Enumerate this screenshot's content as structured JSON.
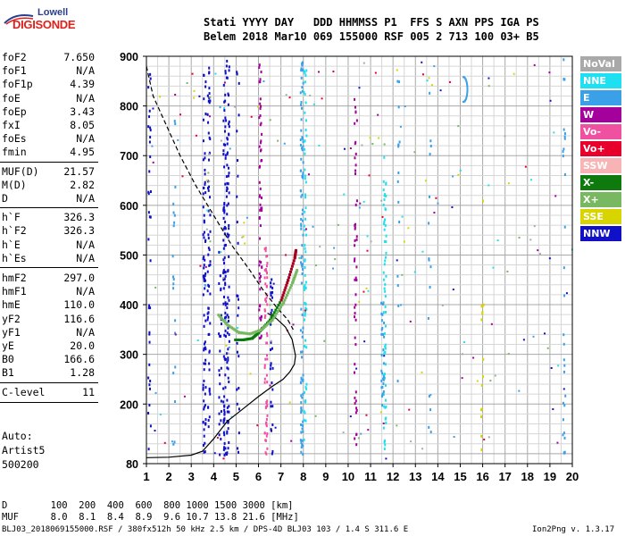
{
  "logo": {
    "top": "Lowell",
    "main": "DIGISONDE"
  },
  "header": {
    "line1": "Stati YYYY DAY   DDD HHMMSS P1  FFS S AXN PPS IGA PS",
    "line2": "Belem 2018 Mar10 069 155000 RSF 005 2 713 100 03+ B5"
  },
  "params": [
    {
      "label": "foF2",
      "value": "7.650"
    },
    {
      "label": "foF1",
      "value": "N/A"
    },
    {
      "label": "foF1p",
      "value": "4.39"
    },
    {
      "label": "foE",
      "value": "N/A"
    },
    {
      "label": "foEp",
      "value": "3.43"
    },
    {
      "label": "fxI",
      "value": "8.05"
    },
    {
      "label": "foEs",
      "value": "N/A"
    },
    {
      "label": "fmin",
      "value": "4.95"
    },
    {
      "label": "MUF(D)",
      "value": "21.57"
    },
    {
      "label": "M(D)",
      "value": "2.82"
    },
    {
      "label": "D",
      "value": "N/A"
    },
    {
      "label": "h`F",
      "value": "326.3"
    },
    {
      "label": "h`F2",
      "value": "326.3"
    },
    {
      "label": "h`E",
      "value": "N/A"
    },
    {
      "label": "h`Es",
      "value": "N/A"
    },
    {
      "label": "hmF2",
      "value": "297.0"
    },
    {
      "label": "hmF1",
      "value": "N/A"
    },
    {
      "label": "hmE",
      "value": "110.0"
    },
    {
      "label": "yF2",
      "value": "116.6"
    },
    {
      "label": "yF1",
      "value": "N/A"
    },
    {
      "label": "yE",
      "value": "20.0"
    },
    {
      "label": "B0",
      "value": "166.6"
    },
    {
      "label": "B1",
      "value": "1.28"
    },
    {
      "label": "C-level",
      "value": "11"
    }
  ],
  "auto": {
    "title": "Auto:",
    "artist": "Artist5",
    "version": "500200"
  },
  "legend": [
    {
      "label": "NoVal",
      "color": "#a9a9a9"
    },
    {
      "label": "NNE",
      "color": "#1ee0f0"
    },
    {
      "label": "E",
      "color": "#3aa0e8"
    },
    {
      "label": "W",
      "color": "#a4009c"
    },
    {
      "label": "Vo-",
      "color": "#f050a0"
    },
    {
      "label": "Vo+",
      "color": "#e8002c"
    },
    {
      "label": "SSW",
      "color": "#f8b4b4"
    },
    {
      "label": "X-",
      "color": "#0e7a0e"
    },
    {
      "label": "X+",
      "color": "#78b860"
    },
    {
      "label": "SSE",
      "color": "#d8d400"
    },
    {
      "label": "NNW",
      "color": "#1010c8"
    }
  ],
  "chart_data": {
    "type": "scatter",
    "x_ticks": [
      "1",
      "2",
      "3",
      "4",
      "5",
      "6",
      "7",
      "8",
      "9",
      "10",
      "11",
      "12",
      "13",
      "14",
      "15",
      "16",
      "17",
      "18",
      "19",
      "20"
    ],
    "y_ticks": [
      "80",
      "200",
      "300",
      "400",
      "500",
      "600",
      "700",
      "800",
      "900"
    ],
    "xlim": [
      1,
      20
    ],
    "ylim": [
      80,
      900
    ],
    "grid": true,
    "traces": [
      {
        "name": "X-",
        "x": [
          4.95,
          5.3,
          5.7,
          6.0,
          6.5,
          7.0,
          7.3,
          7.6,
          7.65
        ],
        "y": [
          330,
          330,
          333,
          345,
          370,
          410,
          450,
          495,
          510
        ]
      },
      {
        "name": "X+",
        "x": [
          4.2,
          4.6,
          5.1,
          5.6,
          6.1,
          6.6,
          7.1,
          7.5,
          7.7
        ],
        "y": [
          380,
          360,
          345,
          342,
          350,
          370,
          405,
          445,
          470
        ]
      }
    ],
    "profile_dashed": {
      "x": [
        1.0,
        1.3,
        1.9,
        2.5,
        3.2,
        4.0,
        4.8,
        5.6,
        6.2,
        6.8,
        7.3,
        7.55
      ],
      "y": [
        880,
        820,
        760,
        700,
        640,
        580,
        520,
        470,
        430,
        395,
        370,
        350
      ]
    },
    "profile_solid": {
      "x": [
        1.0,
        2.0,
        3.0,
        3.5,
        4.0,
        4.6,
        5.3,
        6.0,
        6.6,
        7.1,
        7.4,
        7.6,
        7.65,
        7.5,
        7.2,
        6.8,
        6.4
      ],
      "y": [
        92,
        93,
        97,
        105,
        130,
        165,
        190,
        215,
        235,
        250,
        265,
        280,
        297,
        330,
        355,
        372,
        383
      ]
    }
  },
  "footer": {
    "d_label": "D",
    "d_values": "  100  200  400  600  800 1000 1500 3000 [km]",
    "muf_label": "MUF",
    "muf_values": "  8.0  8.1  8.4  8.9  9.6 10.7 13.8 21.6 [MHz]",
    "file_line": "BLJ03_2018069155000.RSF / 380fx512h 50 kHz 2.5 km / DPS-4D BLJ03 103 / 1.4 S 311.6 E",
    "version": "Ion2Png v. 1.3.17"
  }
}
